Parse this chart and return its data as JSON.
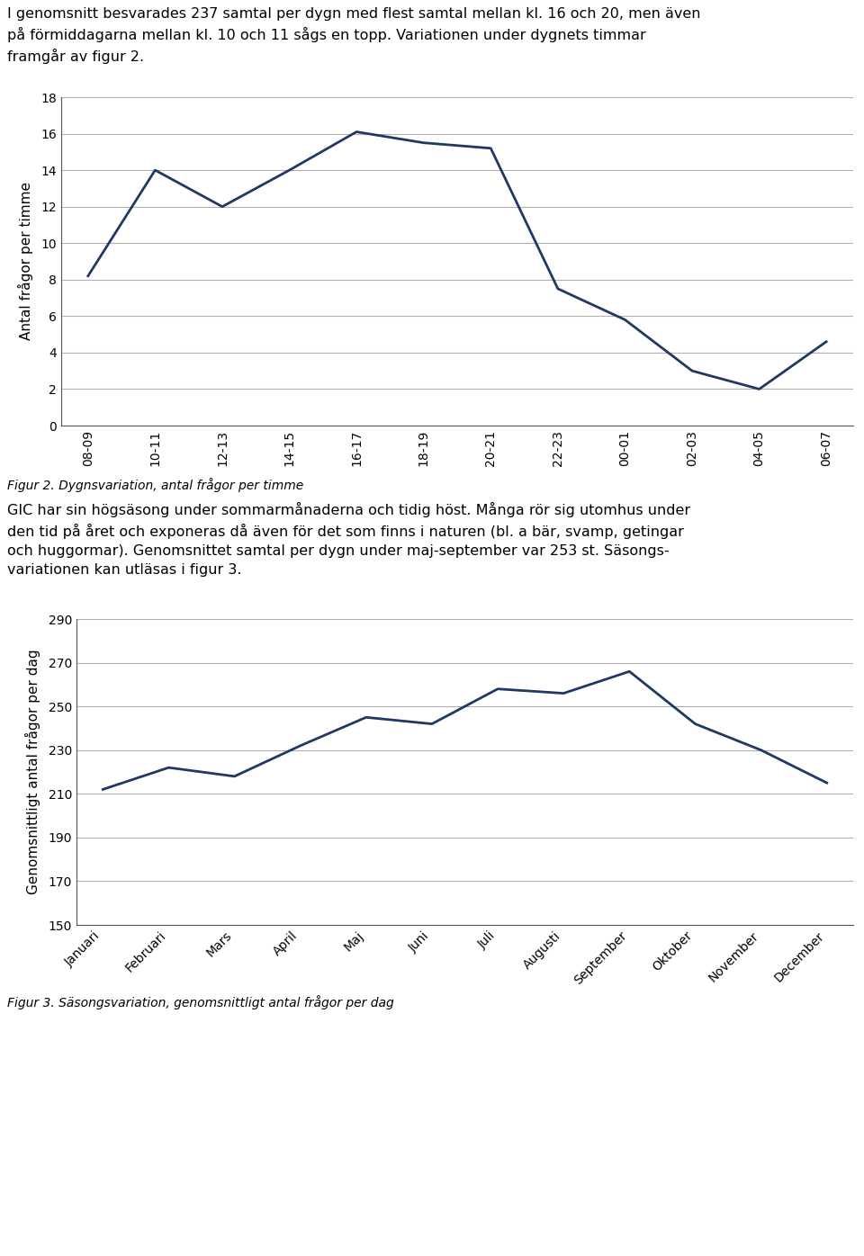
{
  "text_intro": "I genomsnitt besvarades 237 samtal per dygn med flest samtal mellan kl. 16 och 20, men även\npå förmiddagarna mellan kl. 10 och 11 sågs en topp. Variationen under dygnets timmar\nframgår av figur 2.",
  "chart1": {
    "x_labels": [
      "08-09",
      "10-11",
      "12-13",
      "14-15",
      "16-17",
      "18-19",
      "20-21",
      "22-23",
      "00-01",
      "02-03",
      "04-05",
      "06-07"
    ],
    "y_values": [
      8.2,
      14.0,
      12.0,
      14.0,
      16.1,
      15.5,
      15.2,
      7.5,
      5.8,
      3.0,
      2.0,
      4.6
    ],
    "ylabel": "Antal frågor per timme",
    "ylim": [
      0,
      18
    ],
    "yticks": [
      0,
      2,
      4,
      6,
      8,
      10,
      12,
      14,
      16,
      18
    ],
    "line_color": "#1F3864",
    "line_width": 2.0,
    "caption": "Figur 2. Dygnsvariation, antal frågor per timme"
  },
  "text_middle": "GIC har sin högsäsong under sommarmånaderna och tidig höst. Många rör sig utomhus under\nden tid på året och exponeras då även för det som finns i naturen (bl. a bär, svamp, getingar\noch huggormar). Genomsnittet samtal per dygn under maj-september var 253 st. Säsongs-\nvariationen kan utläsas i figur 3.",
  "chart2": {
    "x_labels": [
      "Januari",
      "Februari",
      "Mars",
      "April",
      "Maj",
      "Juni",
      "Juli",
      "Augusti",
      "September",
      "Oktober",
      "November",
      "December"
    ],
    "y_values": [
      212,
      222,
      218,
      232,
      245,
      242,
      258,
      256,
      266,
      242,
      230,
      215
    ],
    "ylabel": "Genomsnittligt antal frågor per dag",
    "ylim": [
      150,
      290
    ],
    "yticks": [
      150,
      170,
      190,
      210,
      230,
      250,
      270,
      290
    ],
    "line_color": "#1F3864",
    "line_width": 2.0,
    "caption": "Figur 3. Säsongsvariation, genomsnittligt antal frågor per dag"
  },
  "background_color": "#ffffff",
  "text_color": "#000000",
  "grid_color": "#b0b0b0",
  "font_size_text": 11.5,
  "font_size_axis_label": 11,
  "font_size_tick": 10,
  "font_size_caption": 10
}
